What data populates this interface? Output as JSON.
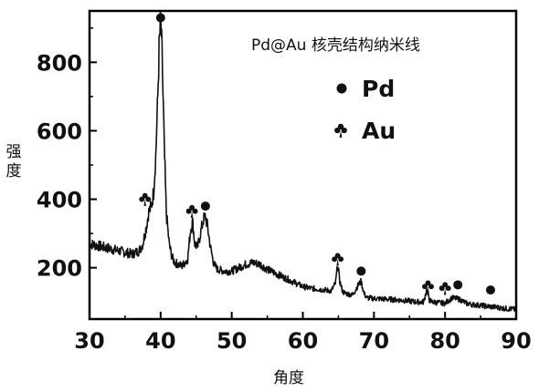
{
  "chart_data": {
    "type": "line",
    "title": "Pd@Au 核壳结构纳米线",
    "xlabel": "角度",
    "ylabel": "强度",
    "xlim": [
      30,
      90
    ],
    "ylim": [
      50,
      950
    ],
    "xticks": [
      30,
      40,
      50,
      60,
      70,
      80,
      90
    ],
    "yticks": [
      200,
      400,
      600,
      800
    ],
    "xtick_labels": [
      "30",
      "40",
      "50",
      "60",
      "70",
      "80",
      "90"
    ],
    "ytick_labels": [
      "200",
      "400",
      "600",
      "800"
    ],
    "grid": false,
    "legend_position": "top-right",
    "legend": [
      {
        "symbol": "circle",
        "label": "Pd"
      },
      {
        "symbol": "club",
        "label": "Au"
      }
    ],
    "colors": {
      "line": "#111111",
      "axis": "#000000"
    },
    "series": [
      {
        "x": [
          30,
          31,
          32,
          33,
          34,
          35,
          36,
          37,
          37.5,
          38,
          38.3,
          38.7,
          39.0,
          39.3,
          39.6,
          39.8,
          40.0,
          40.2,
          40.5,
          40.8,
          41.2,
          41.6,
          42,
          43,
          43.8,
          44.2,
          44.5,
          44.8,
          45.2,
          45.6,
          46.0,
          46.3,
          46.6,
          47.0,
          47.5,
          48,
          49,
          50,
          51,
          52,
          53,
          54,
          55,
          56,
          57,
          58,
          59,
          60,
          61,
          62,
          63,
          64,
          64.6,
          64.9,
          65.2,
          65.6,
          66,
          67,
          67.8,
          68.2,
          68.6,
          69,
          70,
          72,
          74,
          76,
          77,
          77.4,
          77.8,
          78.2,
          79,
          80,
          81,
          82,
          83,
          84,
          85,
          86,
          87,
          88,
          89,
          90
        ],
        "y": [
          270,
          265,
          260,
          255,
          250,
          245,
          240,
          250,
          270,
          320,
          360,
          380,
          420,
          520,
          700,
          850,
          920,
          820,
          560,
          360,
          270,
          230,
          215,
          205,
          225,
          310,
          335,
          270,
          260,
          300,
          340,
          350,
          320,
          260,
          210,
          195,
          190,
          190,
          200,
          210,
          215,
          210,
          195,
          185,
          175,
          165,
          155,
          145,
          140,
          138,
          135,
          132,
          155,
          210,
          160,
          130,
          125,
          120,
          150,
          160,
          125,
          112,
          110,
          108,
          105,
          100,
          100,
          135,
          105,
          100,
          98,
          96,
          112,
          108,
          96,
          92,
          90,
          87,
          85,
          82,
          80,
          78
        ]
      }
    ],
    "markers": [
      {
        "symbol": "circle",
        "x": 40.0,
        "y": 930
      },
      {
        "symbol": "club",
        "x": 37.8,
        "y": 400
      },
      {
        "symbol": "club",
        "x": 44.4,
        "y": 365
      },
      {
        "symbol": "circle",
        "x": 46.3,
        "y": 380
      },
      {
        "symbol": "club",
        "x": 64.9,
        "y": 225
      },
      {
        "symbol": "circle",
        "x": 68.2,
        "y": 190
      },
      {
        "symbol": "club",
        "x": 77.6,
        "y": 145
      },
      {
        "symbol": "club",
        "x": 80.0,
        "y": 140
      },
      {
        "symbol": "circle",
        "x": 81.8,
        "y": 150
      },
      {
        "symbol": "circle",
        "x": 86.4,
        "y": 135
      }
    ]
  }
}
